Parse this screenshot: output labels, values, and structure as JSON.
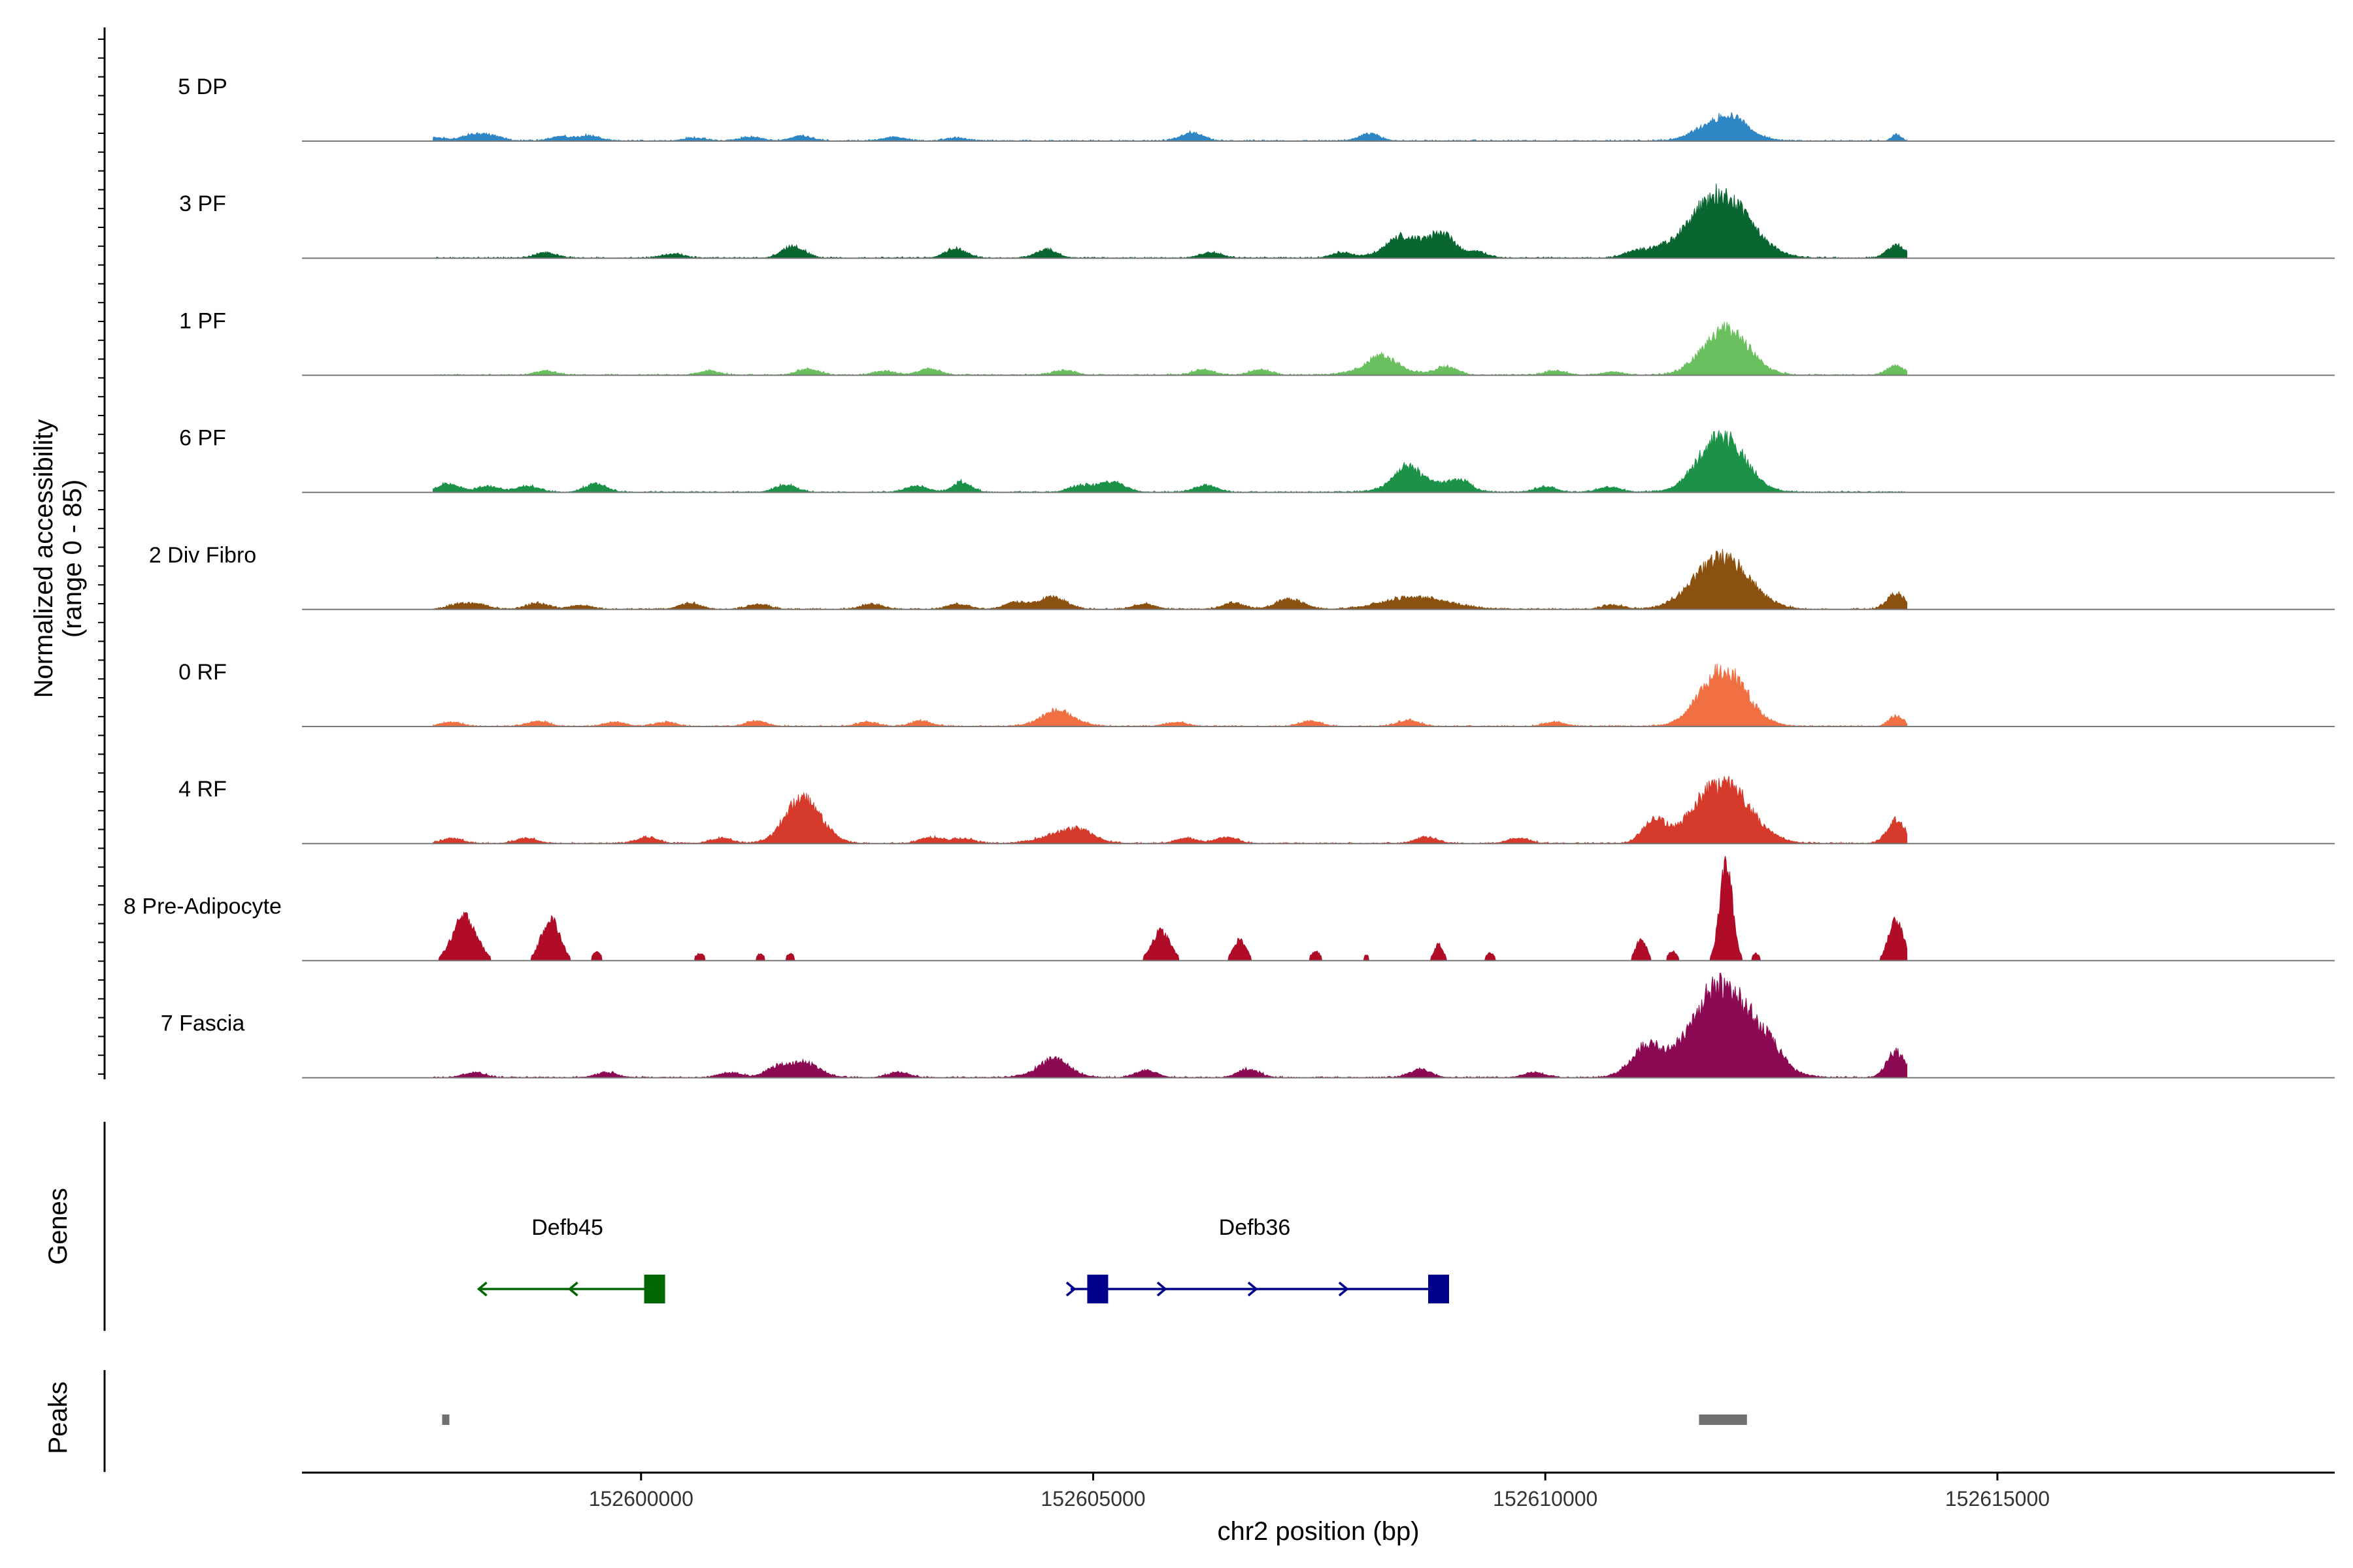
{
  "chart_data": {
    "type": "area",
    "tracks": [
      {
        "name": "5 DP",
        "color": "#2f86c4",
        "noise": [
          [
            1.49,
            0.03
          ],
          [
            1.875,
            0.05
          ],
          [
            2.09,
            0.05
          ],
          [
            2.85,
            0.04
          ],
          [
            3.17,
            0.05
          ],
          [
            4.34,
            0.03
          ],
          [
            4.96,
            0.04
          ],
          [
            5.53,
            0.05
          ],
          [
            6.55,
            0.04
          ],
          [
            7.24,
            0.03
          ],
          [
            9.84,
            0.08
          ],
          [
            11.8,
            0.07
          ]
        ],
        "peaks": [
          [
            15.72,
            0.22,
            0.25
          ],
          [
            15.85,
            0.05,
            0.1
          ],
          [
            17.63,
            0.06,
            0.05
          ]
        ]
      },
      {
        "name": "3 PF",
        "color": "#0a6630",
        "noise": [
          [
            2.7,
            0.05
          ],
          [
            4.1,
            0.04
          ],
          [
            5.43,
            0.12
          ],
          [
            7.23,
            0.09
          ],
          [
            8.23,
            0.08
          ],
          [
            10.06,
            0.05
          ],
          [
            11.5,
            0.05
          ],
          [
            12.1,
            0.08
          ],
          [
            12.63,
            0.13
          ],
          [
            13.0,
            0.05
          ],
          [
            14.73,
            0.06
          ],
          [
            15.0,
            0.05
          ]
        ],
        "peaks": [
          [
            15.68,
            0.62,
            0.32
          ],
          [
            12.35,
            0.17,
            0.28
          ],
          [
            17.63,
            0.12,
            0.1
          ]
        ]
      },
      {
        "name": "1 PF",
        "color": "#6abf5e",
        "noise": [
          [
            2.7,
            0.04
          ],
          [
            4.5,
            0.04
          ],
          [
            5.6,
            0.06
          ],
          [
            6.45,
            0.04
          ],
          [
            6.94,
            0.06
          ],
          [
            8.43,
            0.05
          ],
          [
            9.97,
            0.05
          ],
          [
            10.6,
            0.05
          ],
          [
            11.94,
            0.09
          ],
          [
            12.66,
            0.08
          ],
          [
            13.86,
            0.04
          ],
          [
            14.5,
            0.03
          ]
        ],
        "peaks": [
          [
            15.75,
            0.45,
            0.25
          ],
          [
            17.63,
            0.09,
            0.1
          ],
          [
            11.94,
            0.1,
            0.25
          ]
        ]
      },
      {
        "name": "6 PF",
        "color": "#1b9248",
        "noise": [
          [
            1.62,
            0.08
          ],
          [
            2.06,
            0.06
          ],
          [
            2.5,
            0.06
          ],
          [
            3.25,
            0.08
          ],
          [
            5.35,
            0.07
          ],
          [
            6.8,
            0.06
          ],
          [
            8.6,
            0.06
          ],
          [
            10.0,
            0.07
          ],
          [
            12.2,
            0.12
          ],
          [
            12.81,
            0.1
          ],
          [
            13.75,
            0.05
          ],
          [
            14.46,
            0.05
          ]
        ],
        "peaks": [
          [
            15.7,
            0.55,
            0.25
          ],
          [
            12.32,
            0.14,
            0.25
          ],
          [
            8.95,
            0.1,
            0.15
          ],
          [
            7.3,
            0.1,
            0.1
          ]
        ]
      },
      {
        "name": "2 Div Fibro",
        "color": "#8b5110",
        "noise": [
          [
            1.74,
            0.05
          ],
          [
            1.96,
            0.04
          ],
          [
            2.6,
            0.06
          ],
          [
            3.08,
            0.04
          ],
          [
            4.29,
            0.06
          ],
          [
            5.05,
            0.05
          ],
          [
            6.31,
            0.05
          ],
          [
            7.26,
            0.05
          ],
          [
            7.9,
            0.07
          ],
          [
            9.32,
            0.05
          ],
          [
            10.3,
            0.06
          ],
          [
            14.5,
            0.04
          ]
        ],
        "peaks": [
          [
            15.7,
            0.5,
            0.3
          ],
          [
            12.32,
            0.12,
            0.35
          ],
          [
            8.3,
            0.12,
            0.15
          ],
          [
            17.63,
            0.15,
            0.1
          ],
          [
            10.92,
            0.1,
            0.15
          ]
        ]
      },
      {
        "name": "0 RF",
        "color": "#f07043",
        "noise": [
          [
            1.65,
            0.04
          ],
          [
            2.6,
            0.05
          ],
          [
            3.46,
            0.04
          ],
          [
            4.02,
            0.04
          ],
          [
            5.03,
            0.05
          ],
          [
            6.25,
            0.04
          ],
          [
            6.85,
            0.05
          ],
          [
            8.34,
            0.05
          ],
          [
            9.67,
            0.04
          ],
          [
            11.16,
            0.05
          ],
          [
            12.24,
            0.06
          ],
          [
            13.85,
            0.04
          ]
        ],
        "peaks": [
          [
            15.72,
            0.55,
            0.25
          ],
          [
            8.36,
            0.11,
            0.2
          ],
          [
            17.63,
            0.1,
            0.08
          ]
        ]
      },
      {
        "name": "4 RF",
        "color": "#d63a2a",
        "noise": [
          [
            1.66,
            0.05
          ],
          [
            2.48,
            0.05
          ],
          [
            3.82,
            0.06
          ],
          [
            4.64,
            0.05
          ],
          [
            5.47,
            0.06
          ],
          [
            6.95,
            0.06
          ],
          [
            7.31,
            0.05
          ],
          [
            8.63,
            0.05
          ],
          [
            9.78,
            0.05
          ],
          [
            10.23,
            0.06
          ],
          [
            12.43,
            0.06
          ],
          [
            13.46,
            0.05
          ]
        ],
        "peaks": [
          [
            15.7,
            0.6,
            0.3
          ],
          [
            5.55,
            0.4,
            0.2
          ],
          [
            14.95,
            0.22,
            0.12
          ],
          [
            17.63,
            0.23,
            0.1
          ],
          [
            8.46,
            0.11,
            0.25
          ]
        ]
      },
      {
        "name": "8 Pre-Adipocyte",
        "color": "#b00c28",
        "noise": [],
        "peaks": [
          [
            15.75,
            0.92,
            0.07
          ],
          [
            1.8,
            0.42,
            0.13
          ],
          [
            2.75,
            0.4,
            0.1
          ],
          [
            9.5,
            0.28,
            0.1
          ],
          [
            17.63,
            0.4,
            0.08
          ],
          [
            3.26,
            0.08,
            0.05
          ],
          [
            4.4,
            0.07,
            0.05
          ],
          [
            5.07,
            0.07,
            0.04
          ],
          [
            5.4,
            0.07,
            0.04
          ],
          [
            10.37,
            0.2,
            0.07
          ],
          [
            11.21,
            0.09,
            0.05
          ],
          [
            12.57,
            0.15,
            0.05
          ],
          [
            13.14,
            0.07,
            0.05
          ],
          [
            14.81,
            0.2,
            0.06
          ],
          [
            15.16,
            0.09,
            0.05
          ],
          [
            16.08,
            0.07,
            0.04
          ],
          [
            11.77,
            0.05,
            0.04
          ]
        ]
      },
      {
        "name": "7 Fascia",
        "color": "#8c0a53",
        "noise": [
          [
            1.9,
            0.05
          ],
          [
            3.37,
            0.05
          ],
          [
            4.74,
            0.05
          ],
          [
            5.23,
            0.07
          ],
          [
            6.6,
            0.05
          ],
          [
            8.34,
            0.07
          ],
          [
            9.34,
            0.07
          ],
          [
            10.47,
            0.08
          ],
          [
            12.37,
            0.08
          ],
          [
            13.63,
            0.05
          ],
          [
            14.86,
            0.12
          ],
          [
            16.26,
            0.09
          ]
        ],
        "peaks": [
          [
            15.72,
            0.9,
            0.35
          ],
          [
            8.3,
            0.12,
            0.2
          ],
          [
            5.53,
            0.15,
            0.18
          ],
          [
            17.63,
            0.25,
            0.1
          ],
          [
            14.86,
            0.16,
            0.2
          ]
        ]
      }
    ],
    "track_range": [
      0,
      85
    ],
    "genes": [
      {
        "name": "Defb45",
        "start": 1.97,
        "end": 3.9,
        "strand": "-",
        "color": "#006600",
        "exons": [
          3.9
        ]
      },
      {
        "name": "Defb36",
        "start": 8.5,
        "end": 12.57,
        "strand": "+",
        "color": "#00008b",
        "exons": [
          8.8,
          12.57
        ]
      }
    ],
    "peaks": [
      {
        "start": 1.55,
        "end": 1.63
      },
      {
        "start": 15.45,
        "end": 15.98
      }
    ],
    "x_offset_note": "",
    "x_range": [
      152596250,
      152618730
    ],
    "x_ticks": [
      "152600000",
      "152605000",
      "152610000",
      "152615000"
    ],
    "x_tick_values": [
      152600000,
      152605000,
      152610000,
      152615000
    ],
    "xlabel": "chr2 position (bp)",
    "ylabel_line1": "Normalized accessibility",
    "ylabel_line2": "(range 0 - 85)",
    "genes_label": "Genes",
    "peaks_label": "Peaks"
  }
}
